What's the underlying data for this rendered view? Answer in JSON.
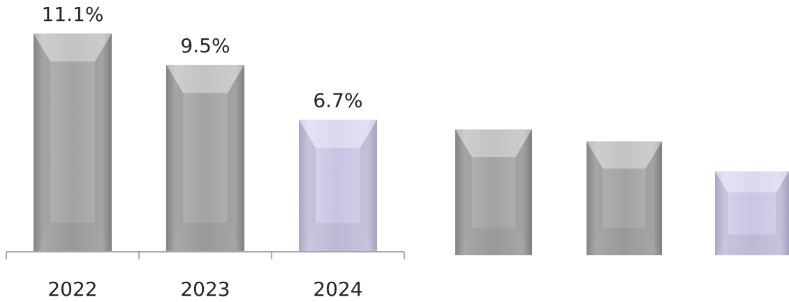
{
  "chart_data": [
    {
      "type": "bar",
      "title": "",
      "xlabel": "",
      "ylabel": "",
      "categories": [
        "2022",
        "2023",
        "2024"
      ],
      "values": [
        11.1,
        9.5,
        6.7
      ],
      "data_labels": [
        "11.1%",
        "9.5%",
        "6.7%"
      ],
      "ylim": [
        0,
        11.1
      ],
      "grid": false,
      "legend": "none",
      "colors": [
        "#a6a6a6",
        "#a6a6a6",
        "#cbc3e3"
      ]
    },
    {
      "type": "bar",
      "title": "",
      "categories": [
        "",
        "",
        ""
      ],
      "values": [
        6.3,
        5.7,
        4.2
      ],
      "data_labels": [],
      "grid": false,
      "legend": "none",
      "colors": [
        "#a6a6a6",
        "#a6a6a6",
        "#cbc3e3"
      ]
    }
  ]
}
